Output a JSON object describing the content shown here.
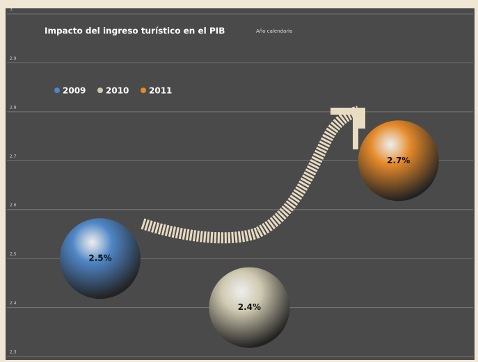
{
  "chart_data": {
    "type": "bubble",
    "title": "Impacto del ingreso turístico en el PIB",
    "subtitle": "Año calendario",
    "categories": [
      "2009",
      "2010",
      "2011"
    ],
    "values": [
      2.5,
      2.4,
      2.7
    ],
    "value_labels": [
      "2.5%",
      "2.4%",
      "2.7%"
    ],
    "colors": [
      "#4f86c6",
      "#cfc9b0",
      "#e58a2a"
    ],
    "ylim": [
      2.3,
      3.0
    ],
    "yticks": [
      2.3,
      2.4,
      2.5,
      2.6,
      2.7,
      2.8,
      2.9,
      3.0
    ],
    "grid": true,
    "legend": "top-left"
  }
}
